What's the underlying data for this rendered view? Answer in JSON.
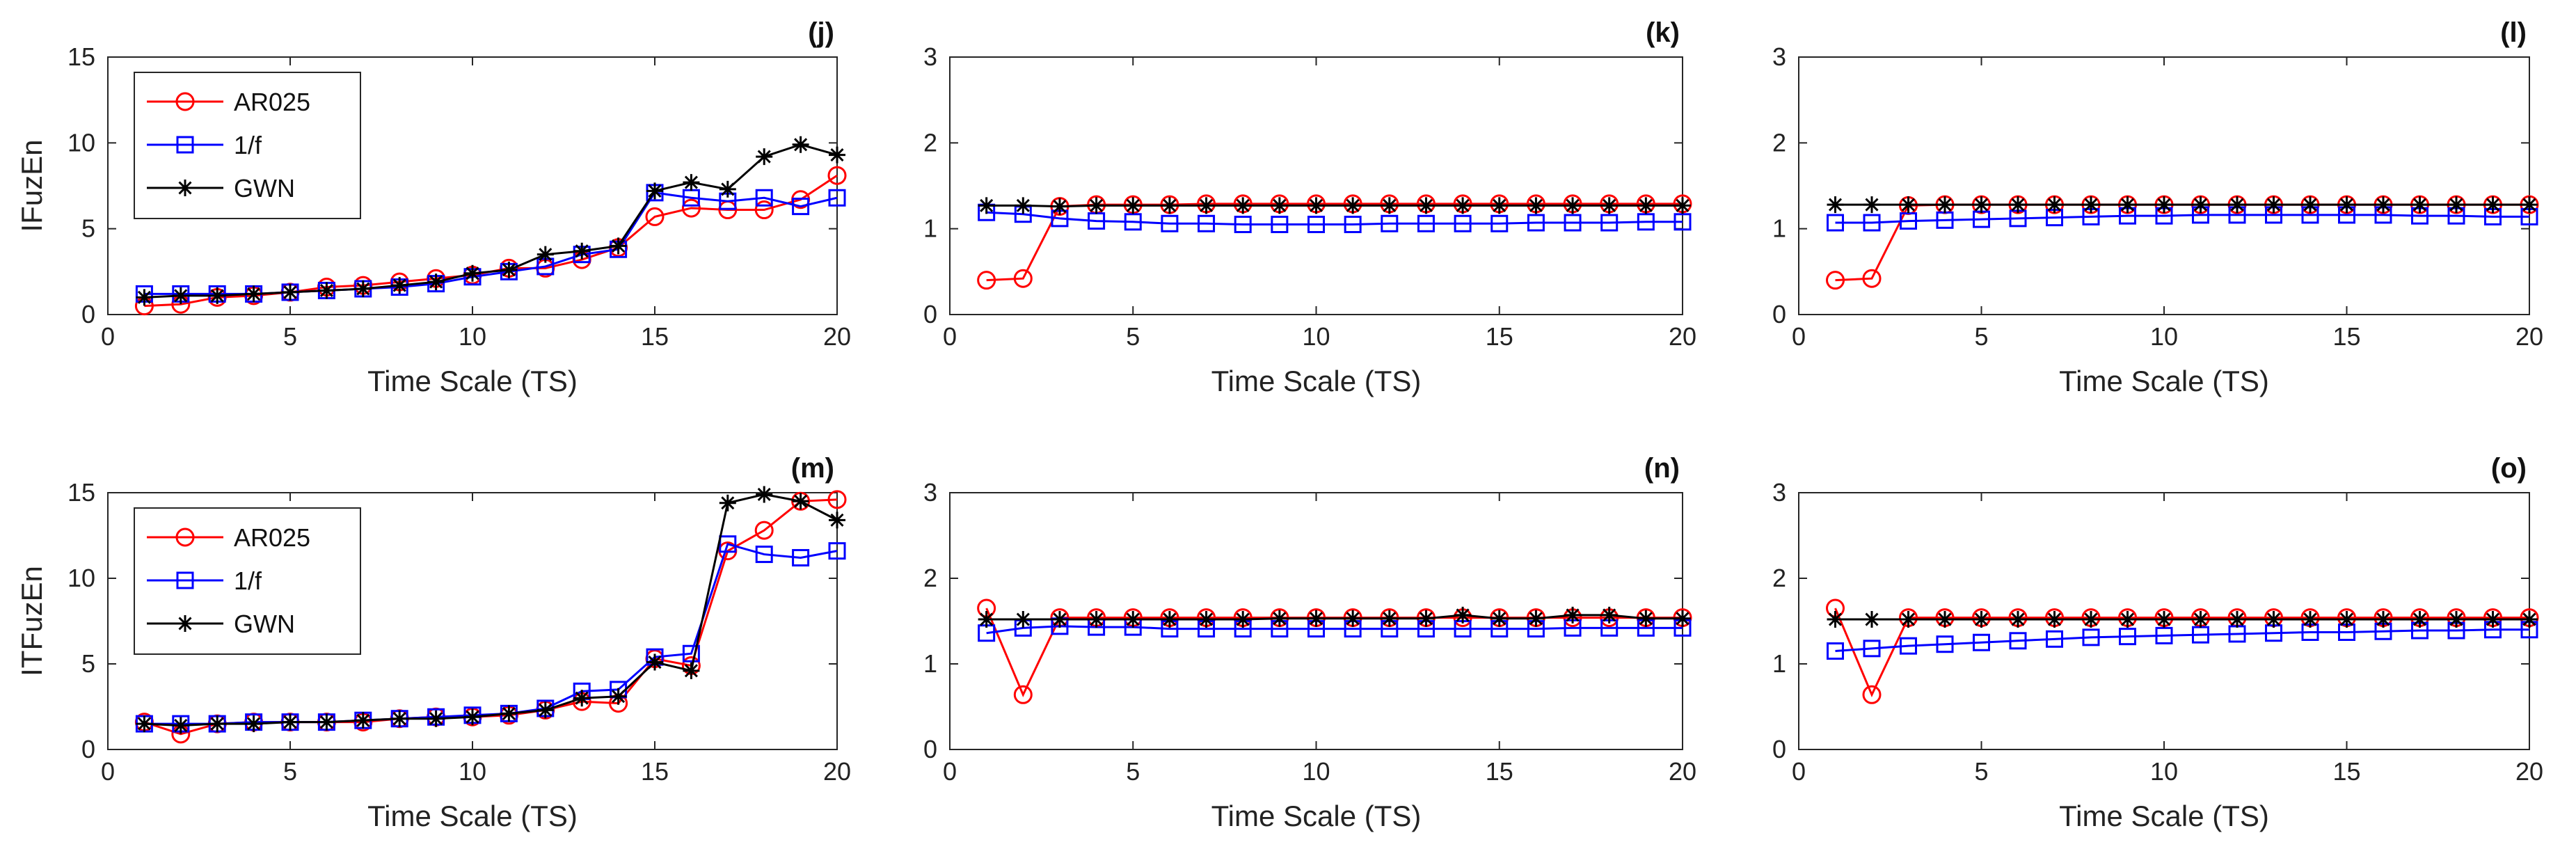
{
  "chart_data": [
    {
      "panel": "(j)",
      "type": "line",
      "title": "",
      "xlabel": "Time Scale (TS)",
      "ylabel": "IFuzEn",
      "xlim": [
        0,
        20
      ],
      "ylim": [
        0,
        15
      ],
      "xticks": [
        0,
        5,
        10,
        15,
        20
      ],
      "yticks": [
        0,
        5,
        10,
        15
      ],
      "legend": true,
      "legend_loc": "top-left",
      "x": [
        1,
        2,
        3,
        4,
        5,
        6,
        7,
        8,
        9,
        10,
        11,
        12,
        13,
        14,
        15,
        16,
        17,
        18,
        19,
        20
      ],
      "series": [
        {
          "name": "AR025",
          "color": "#ff0000",
          "marker": "circle",
          "values": [
            0.5,
            0.6,
            1.0,
            1.1,
            1.3,
            1.6,
            1.7,
            1.9,
            2.1,
            2.3,
            2.7,
            2.7,
            3.2,
            3.9,
            5.7,
            6.2,
            6.1,
            6.1,
            6.7,
            8.1
          ]
        },
        {
          "name": "1/f",
          "color": "#0000ff",
          "marker": "square",
          "values": [
            1.2,
            1.2,
            1.2,
            1.2,
            1.3,
            1.4,
            1.5,
            1.6,
            1.8,
            2.2,
            2.5,
            2.8,
            3.5,
            3.8,
            7.1,
            6.8,
            6.6,
            6.8,
            6.3,
            6.8
          ]
        },
        {
          "name": "GWN",
          "color": "#000000",
          "marker": "star",
          "values": [
            1.0,
            1.1,
            1.1,
            1.2,
            1.3,
            1.4,
            1.5,
            1.7,
            1.9,
            2.4,
            2.6,
            3.5,
            3.7,
            4.0,
            7.2,
            7.7,
            7.3,
            9.2,
            9.9,
            9.3
          ]
        }
      ]
    },
    {
      "panel": "(k)",
      "type": "line",
      "title": "",
      "xlabel": "Time Scale (TS)",
      "ylabel": "",
      "xlim": [
        0,
        20
      ],
      "ylim": [
        0,
        3
      ],
      "xticks": [
        0,
        5,
        10,
        15,
        20
      ],
      "yticks": [
        0,
        1,
        2,
        3
      ],
      "legend": false,
      "x": [
        1,
        2,
        3,
        4,
        5,
        6,
        7,
        8,
        9,
        10,
        11,
        12,
        13,
        14,
        15,
        16,
        17,
        18,
        19,
        20
      ],
      "series": [
        {
          "name": "AR025",
          "color": "#ff0000",
          "marker": "circle",
          "values": [
            0.4,
            0.42,
            1.26,
            1.28,
            1.28,
            1.28,
            1.29,
            1.29,
            1.29,
            1.29,
            1.29,
            1.29,
            1.29,
            1.29,
            1.29,
            1.29,
            1.29,
            1.29,
            1.29,
            1.29
          ]
        },
        {
          "name": "1/f",
          "color": "#0000ff",
          "marker": "square",
          "values": [
            1.19,
            1.17,
            1.12,
            1.09,
            1.08,
            1.06,
            1.06,
            1.05,
            1.05,
            1.05,
            1.05,
            1.06,
            1.06,
            1.06,
            1.06,
            1.07,
            1.07,
            1.07,
            1.08,
            1.08
          ]
        },
        {
          "name": "GWN",
          "color": "#000000",
          "marker": "star",
          "values": [
            1.27,
            1.27,
            1.26,
            1.27,
            1.27,
            1.27,
            1.27,
            1.27,
            1.27,
            1.27,
            1.27,
            1.27,
            1.27,
            1.27,
            1.27,
            1.27,
            1.27,
            1.27,
            1.27,
            1.27
          ]
        }
      ]
    },
    {
      "panel": "(l)",
      "type": "line",
      "title": "",
      "xlabel": "Time Scale (TS)",
      "ylabel": "",
      "xlim": [
        0,
        20
      ],
      "ylim": [
        0,
        3
      ],
      "xticks": [
        0,
        5,
        10,
        15,
        20
      ],
      "yticks": [
        0,
        1,
        2,
        3
      ],
      "legend": false,
      "x": [
        1,
        2,
        3,
        4,
        5,
        6,
        7,
        8,
        9,
        10,
        11,
        12,
        13,
        14,
        15,
        16,
        17,
        18,
        19,
        20
      ],
      "series": [
        {
          "name": "AR025",
          "color": "#ff0000",
          "marker": "circle",
          "values": [
            0.4,
            0.42,
            1.27,
            1.28,
            1.28,
            1.28,
            1.28,
            1.28,
            1.28,
            1.28,
            1.28,
            1.28,
            1.28,
            1.28,
            1.28,
            1.28,
            1.28,
            1.28,
            1.28,
            1.28
          ]
        },
        {
          "name": "1/f",
          "color": "#0000ff",
          "marker": "square",
          "values": [
            1.07,
            1.07,
            1.09,
            1.1,
            1.11,
            1.12,
            1.13,
            1.14,
            1.15,
            1.15,
            1.16,
            1.16,
            1.16,
            1.16,
            1.16,
            1.16,
            1.15,
            1.15,
            1.14,
            1.14
          ]
        },
        {
          "name": "GWN",
          "color": "#000000",
          "marker": "star",
          "values": [
            1.28,
            1.28,
            1.28,
            1.28,
            1.28,
            1.28,
            1.28,
            1.28,
            1.28,
            1.28,
            1.28,
            1.28,
            1.28,
            1.28,
            1.28,
            1.28,
            1.28,
            1.28,
            1.28,
            1.28
          ]
        }
      ]
    },
    {
      "panel": "(m)",
      "type": "line",
      "title": "",
      "xlabel": "Time Scale (TS)",
      "ylabel": "ITFuzEn",
      "xlim": [
        0,
        20
      ],
      "ylim": [
        0,
        15
      ],
      "xticks": [
        0,
        5,
        10,
        15,
        20
      ],
      "yticks": [
        0,
        5,
        10,
        15
      ],
      "legend": true,
      "legend_loc": "top-left",
      "x": [
        1,
        2,
        3,
        4,
        5,
        6,
        7,
        8,
        9,
        10,
        11,
        12,
        13,
        14,
        15,
        16,
        17,
        18,
        19,
        20
      ],
      "series": [
        {
          "name": "AR025",
          "color": "#ff0000",
          "marker": "circle",
          "values": [
            1.6,
            0.9,
            1.5,
            1.6,
            1.6,
            1.6,
            1.6,
            1.8,
            1.9,
            1.9,
            2.0,
            2.3,
            2.8,
            2.7,
            5.3,
            4.9,
            11.6,
            12.8,
            14.5,
            14.6
          ]
        },
        {
          "name": "1/f",
          "color": "#0000ff",
          "marker": "square",
          "values": [
            1.5,
            1.5,
            1.5,
            1.6,
            1.6,
            1.6,
            1.7,
            1.8,
            1.9,
            2.0,
            2.1,
            2.4,
            3.4,
            3.5,
            5.4,
            5.6,
            12.0,
            11.4,
            11.2,
            11.6
          ]
        },
        {
          "name": "GWN",
          "color": "#000000",
          "marker": "star",
          "values": [
            1.5,
            1.4,
            1.5,
            1.5,
            1.6,
            1.6,
            1.7,
            1.8,
            1.8,
            1.9,
            2.1,
            2.3,
            3.0,
            3.1,
            5.1,
            4.6,
            14.4,
            14.9,
            14.5,
            13.4
          ]
        }
      ]
    },
    {
      "panel": "(n)",
      "type": "line",
      "title": "",
      "xlabel": "Time Scale (TS)",
      "ylabel": "",
      "xlim": [
        0,
        20
      ],
      "ylim": [
        0,
        3
      ],
      "xticks": [
        0,
        5,
        10,
        15,
        20
      ],
      "yticks": [
        0,
        1,
        2,
        3
      ],
      "legend": false,
      "x": [
        1,
        2,
        3,
        4,
        5,
        6,
        7,
        8,
        9,
        10,
        11,
        12,
        13,
        14,
        15,
        16,
        17,
        18,
        19,
        20
      ],
      "series": [
        {
          "name": "AR025",
          "color": "#ff0000",
          "marker": "circle",
          "values": [
            1.65,
            0.64,
            1.54,
            1.54,
            1.54,
            1.54,
            1.54,
            1.54,
            1.54,
            1.54,
            1.54,
            1.54,
            1.54,
            1.54,
            1.54,
            1.54,
            1.54,
            1.54,
            1.54,
            1.54
          ]
        },
        {
          "name": "1/f",
          "color": "#0000ff",
          "marker": "square",
          "values": [
            1.36,
            1.42,
            1.44,
            1.43,
            1.43,
            1.41,
            1.41,
            1.41,
            1.41,
            1.41,
            1.41,
            1.41,
            1.41,
            1.41,
            1.41,
            1.41,
            1.42,
            1.42,
            1.42,
            1.42
          ]
        },
        {
          "name": "GWN",
          "color": "#000000",
          "marker": "star",
          "values": [
            1.52,
            1.52,
            1.52,
            1.52,
            1.52,
            1.52,
            1.52,
            1.52,
            1.53,
            1.53,
            1.53,
            1.53,
            1.53,
            1.57,
            1.53,
            1.53,
            1.57,
            1.57,
            1.53,
            1.53
          ]
        }
      ]
    },
    {
      "panel": "(o)",
      "type": "line",
      "title": "",
      "xlabel": "Time Scale (TS)",
      "ylabel": "",
      "xlim": [
        0,
        20
      ],
      "ylim": [
        0,
        3
      ],
      "xticks": [
        0,
        5,
        10,
        15,
        20
      ],
      "yticks": [
        0,
        1,
        2,
        3
      ],
      "legend": false,
      "x": [
        1,
        2,
        3,
        4,
        5,
        6,
        7,
        8,
        9,
        10,
        11,
        12,
        13,
        14,
        15,
        16,
        17,
        18,
        19,
        20
      ],
      "series": [
        {
          "name": "AR025",
          "color": "#ff0000",
          "marker": "circle",
          "values": [
            1.65,
            0.64,
            1.54,
            1.54,
            1.54,
            1.54,
            1.54,
            1.54,
            1.54,
            1.54,
            1.54,
            1.54,
            1.54,
            1.54,
            1.54,
            1.54,
            1.54,
            1.54,
            1.54,
            1.54
          ]
        },
        {
          "name": "1/f",
          "color": "#0000ff",
          "marker": "square",
          "values": [
            1.15,
            1.18,
            1.21,
            1.23,
            1.25,
            1.27,
            1.29,
            1.31,
            1.32,
            1.33,
            1.34,
            1.35,
            1.36,
            1.37,
            1.37,
            1.38,
            1.39,
            1.39,
            1.4,
            1.4
          ]
        },
        {
          "name": "GWN",
          "color": "#000000",
          "marker": "star",
          "values": [
            1.52,
            1.52,
            1.52,
            1.52,
            1.52,
            1.52,
            1.52,
            1.52,
            1.52,
            1.52,
            1.52,
            1.52,
            1.52,
            1.52,
            1.52,
            1.52,
            1.52,
            1.52,
            1.52,
            1.52
          ]
        }
      ]
    }
  ]
}
